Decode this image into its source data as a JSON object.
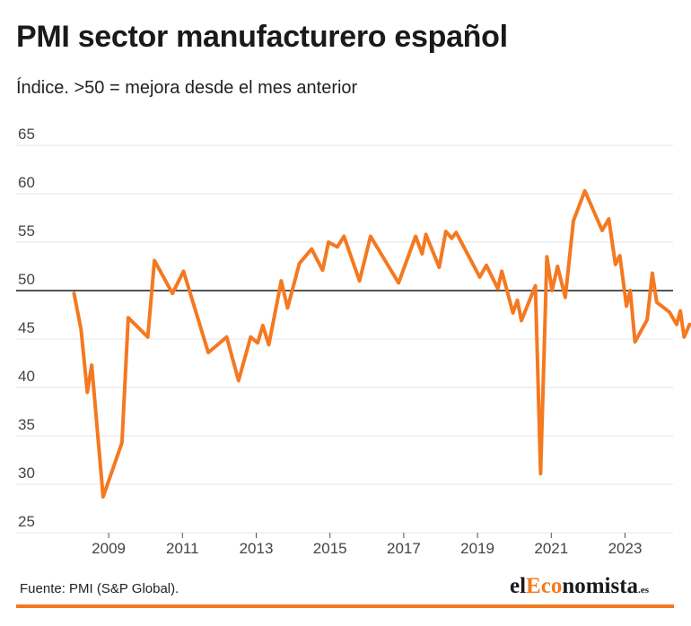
{
  "chart_data": {
    "type": "line",
    "title": "PMI sector manufacturero español",
    "subtitle": "Índice. >50 = mejora desde el mes anterior",
    "reference_line": 50,
    "ylim": [
      25,
      65
    ],
    "y_ticks": [
      "65",
      "60",
      "55",
      "50",
      "45",
      "40",
      "35",
      "30",
      "25"
    ],
    "x_ticks": [
      "2009",
      "2011",
      "2013",
      "2015",
      "2017",
      "2019",
      "2021",
      "2023"
    ],
    "xlim": [
      2008.0,
      2024.2
    ],
    "grid": true,
    "series": [
      {
        "name": "PMI",
        "color": "#f47920",
        "points": [
          [
            2008.06,
            49.7
          ],
          [
            2008.25,
            46.0
          ],
          [
            2008.42,
            39.5
          ],
          [
            2008.54,
            42.3
          ],
          [
            2008.85,
            28.7
          ],
          [
            2009.36,
            34.3
          ],
          [
            2009.53,
            47.2
          ],
          [
            2010.06,
            45.2
          ],
          [
            2010.24,
            53.1
          ],
          [
            2010.73,
            49.7
          ],
          [
            2011.03,
            52.0
          ],
          [
            2011.7,
            43.6
          ],
          [
            2012.2,
            45.2
          ],
          [
            2012.52,
            40.7
          ],
          [
            2012.85,
            45.2
          ],
          [
            2013.04,
            44.6
          ],
          [
            2013.18,
            46.4
          ],
          [
            2013.34,
            44.4
          ],
          [
            2013.68,
            51.0
          ],
          [
            2013.85,
            48.2
          ],
          [
            2014.17,
            52.8
          ],
          [
            2014.5,
            54.3
          ],
          [
            2014.8,
            52.1
          ],
          [
            2014.96,
            55.0
          ],
          [
            2015.2,
            54.5
          ],
          [
            2015.38,
            55.6
          ],
          [
            2015.8,
            51.0
          ],
          [
            2016.1,
            55.6
          ],
          [
            2016.86,
            50.8
          ],
          [
            2017.32,
            55.6
          ],
          [
            2017.5,
            53.8
          ],
          [
            2017.6,
            55.8
          ],
          [
            2017.96,
            52.4
          ],
          [
            2018.14,
            56.1
          ],
          [
            2018.3,
            55.4
          ],
          [
            2018.42,
            56.0
          ],
          [
            2019.06,
            51.4
          ],
          [
            2019.24,
            52.6
          ],
          [
            2019.55,
            50.2
          ],
          [
            2019.66,
            52.0
          ],
          [
            2019.96,
            47.7
          ],
          [
            2020.08,
            49.0
          ],
          [
            2020.19,
            46.9
          ],
          [
            2020.57,
            50.5
          ],
          [
            2020.71,
            31.1
          ],
          [
            2020.88,
            53.5
          ],
          [
            2021.02,
            50.0
          ],
          [
            2021.17,
            52.5
          ],
          [
            2021.38,
            49.3
          ],
          [
            2021.6,
            57.2
          ],
          [
            2021.91,
            60.3
          ],
          [
            2022.38,
            56.2
          ],
          [
            2022.56,
            57.4
          ],
          [
            2022.74,
            52.7
          ],
          [
            2022.86,
            53.6
          ],
          [
            2023.04,
            48.4
          ],
          [
            2023.14,
            50.0
          ],
          [
            2023.27,
            44.7
          ],
          [
            2023.6,
            47.0
          ],
          [
            2023.74,
            51.8
          ],
          [
            2023.86,
            48.8
          ],
          [
            2024.2,
            47.8
          ],
          [
            2024.4,
            46.5
          ],
          [
            2024.5,
            47.9
          ],
          [
            2024.6,
            45.2
          ],
          [
            2024.75,
            46.5
          ]
        ]
      }
    ]
  },
  "footer": {
    "source": "Fuente: PMI (S&P Global).",
    "brand_prefix": "el",
    "brand_accent": "Eco",
    "brand_rest": "nomista",
    "brand_suffix": ".es",
    "accent_color": "#f47920"
  }
}
